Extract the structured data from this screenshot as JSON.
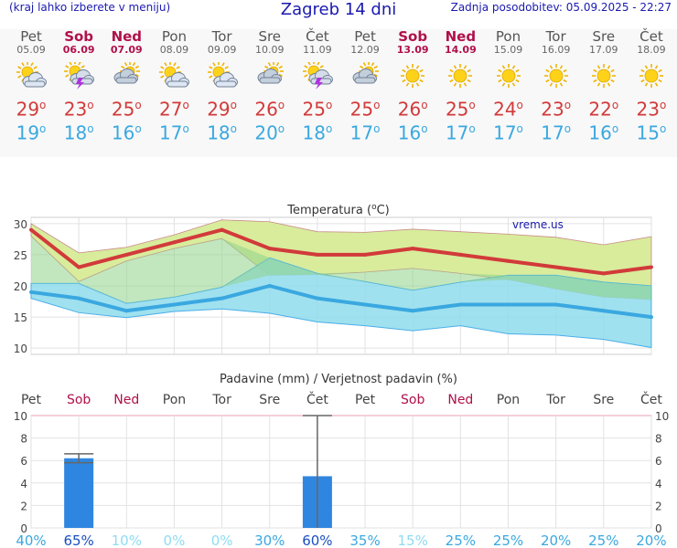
{
  "header": {
    "left_note": "(kraj lahko izberete v meniju)",
    "title": "Zagreb 14 dni",
    "updated": "Zadnja posodobitev: 05.09.2025 - 22:27"
  },
  "days": [
    {
      "name": "Pet",
      "date": "05.09",
      "weekend": false,
      "icon": "sun-cloud-icon",
      "max": "29",
      "min": "19"
    },
    {
      "name": "Sob",
      "date": "06.09",
      "weekend": true,
      "icon": "sun-cloud-storm-icon",
      "max": "23",
      "min": "18"
    },
    {
      "name": "Ned",
      "date": "07.09",
      "weekend": true,
      "icon": "cloud-sun-icon",
      "max": "25",
      "min": "16"
    },
    {
      "name": "Pon",
      "date": "08.09",
      "weekend": false,
      "icon": "sun-cloud-icon",
      "max": "27",
      "min": "17"
    },
    {
      "name": "Tor",
      "date": "09.09",
      "weekend": false,
      "icon": "sun-cloud-icon",
      "max": "29",
      "min": "18"
    },
    {
      "name": "Sre",
      "date": "10.09",
      "weekend": false,
      "icon": "cloud-sun-icon",
      "max": "26",
      "min": "20"
    },
    {
      "name": "Čet",
      "date": "11.09",
      "weekend": false,
      "icon": "sun-cloud-storm-icon",
      "max": "25",
      "min": "18"
    },
    {
      "name": "Pet",
      "date": "12.09",
      "weekend": false,
      "icon": "cloud-sun-icon",
      "max": "25",
      "min": "17"
    },
    {
      "name": "Sob",
      "date": "13.09",
      "weekend": true,
      "icon": "sun-icon",
      "max": "26",
      "min": "16"
    },
    {
      "name": "Ned",
      "date": "14.09",
      "weekend": true,
      "icon": "sun-icon",
      "max": "25",
      "min": "17"
    },
    {
      "name": "Pon",
      "date": "15.09",
      "weekend": false,
      "icon": "sun-icon",
      "max": "24",
      "min": "17"
    },
    {
      "name": "Tor",
      "date": "16.09",
      "weekend": false,
      "icon": "sun-icon",
      "max": "23",
      "min": "17"
    },
    {
      "name": "Sre",
      "date": "17.09",
      "weekend": false,
      "icon": "sun-icon",
      "max": "22",
      "min": "16"
    },
    {
      "name": "Čet",
      "date": "18.09",
      "weekend": false,
      "icon": "sun-icon",
      "max": "23",
      "min": "15"
    }
  ],
  "degree_symbol": "o",
  "colors": {
    "title": "#1a1ab0",
    "weekend": "#b0104a",
    "max": "#d23a3a",
    "min": "#3aa8e0",
    "max_band": "#d8ec9c",
    "min_band": "#8fdcec",
    "overlap": "#8fd48a",
    "bar": "#2f86e0",
    "prob_low": "#8fdcf2",
    "prob_mid": "#3aa8e0",
    "prob_high": "#1a4fc0"
  },
  "chart_data": [
    {
      "type": "line",
      "title": "Temperatura (°C)",
      "title_prefix": "Temperatura (",
      "title_unit_sup": "o",
      "title_suffix": "C)",
      "watermark": "vreme.us",
      "ylim": [
        9,
        31
      ],
      "yticks": [
        10,
        15,
        20,
        25,
        30
      ],
      "categories": [
        "Pet",
        "Sob",
        "Ned",
        "Pon",
        "Tor",
        "Sre",
        "Čet",
        "Pet",
        "Sob",
        "Ned",
        "Pon",
        "Tor",
        "Sre",
        "Čet"
      ],
      "series": [
        {
          "values": [
            29,
            23,
            25,
            27,
            29,
            26,
            25,
            25,
            26,
            25,
            24,
            23,
            22,
            23
          ]
        },
        {
          "values": [
            19,
            18,
            16,
            17,
            18,
            20,
            18,
            17,
            16,
            17,
            17,
            17,
            16,
            15
          ]
        }
      ],
      "max_band_upper": [
        30,
        25.3,
        26.2,
        28.2,
        30.6,
        30.3,
        28.7,
        28.6,
        29.1,
        28.7,
        28.3,
        27.8,
        26.6,
        27.9
      ],
      "max_band_lower": [
        28,
        20.7,
        24,
        26,
        27.6,
        21.7,
        21.8,
        22.2,
        22.8,
        22,
        21,
        19.5,
        18.2,
        17.8
      ],
      "min_band_upper": [
        20.4,
        20.4,
        17.2,
        18.2,
        19.8,
        24.5,
        22,
        20.7,
        19.3,
        20.6,
        21.7,
        21.7,
        20.6,
        20
      ],
      "min_band_lower": [
        18,
        15.7,
        14.9,
        15.9,
        16.3,
        15.6,
        14.2,
        13.6,
        12.8,
        13.6,
        12.3,
        12.1,
        11.4,
        10.1
      ],
      "grid": true
    },
    {
      "type": "bar",
      "title": "Padavine (mm) / Verjetnost padavin (%)",
      "ylim": [
        0,
        10
      ],
      "yticks": [
        0,
        2,
        4,
        6,
        8,
        10
      ],
      "categories": [
        "Pet",
        "Sob",
        "Ned",
        "Pon",
        "Tor",
        "Sre",
        "Čet",
        "Pet",
        "Sob",
        "Ned",
        "Pon",
        "Tor",
        "Sre",
        "Čet"
      ],
      "values": [
        0,
        6.2,
        0,
        0,
        0,
        0,
        4.6,
        0,
        0,
        0,
        0,
        0,
        0,
        0
      ],
      "error_high": [
        null,
        6.6,
        null,
        null,
        null,
        null,
        10,
        null,
        null,
        null,
        null,
        null,
        null,
        null
      ],
      "error_low": [
        null,
        5.8,
        null,
        null,
        null,
        null,
        0,
        null,
        null,
        null,
        null,
        null,
        null,
        null
      ],
      "probability": [
        "40%",
        "65%",
        "10%",
        "0%",
        "0%",
        "30%",
        "60%",
        "35%",
        "15%",
        "25%",
        "25%",
        "20%",
        "25%",
        "20%"
      ],
      "grid": true
    }
  ]
}
